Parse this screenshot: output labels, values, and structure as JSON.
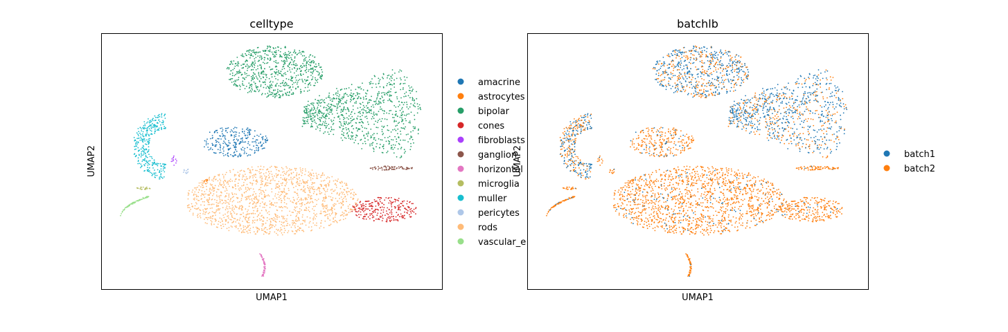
{
  "chart_data": [
    {
      "type": "scatter",
      "title": "celltype",
      "xlabel": "UMAP1",
      "ylabel": "UMAP2",
      "grid": false,
      "ticks_visible": false,
      "legend_placement": "right, outside",
      "series": [
        {
          "name": "amacrine",
          "color": "#1f77b4"
        },
        {
          "name": "astrocytes",
          "color": "#ff7f0e"
        },
        {
          "name": "bipolar",
          "color": "#279e68"
        },
        {
          "name": "cones",
          "color": "#d62728"
        },
        {
          "name": "fibroblasts",
          "color": "#aa40fc"
        },
        {
          "name": "ganglion",
          "color": "#8c564b"
        },
        {
          "name": "horizontal",
          "color": "#e377c2"
        },
        {
          "name": "microglia",
          "color": "#b5bd61"
        },
        {
          "name": "muller",
          "color": "#17becf"
        },
        {
          "name": "pericytes",
          "color": "#aec7e8"
        },
        {
          "name": "rods",
          "color": "#ffbb78"
        },
        {
          "name": "vascular_e",
          "color": "#98df8a"
        }
      ]
    },
    {
      "type": "scatter",
      "title": "batchlb",
      "xlabel": "UMAP1",
      "ylabel": "UMAP2",
      "grid": false,
      "ticks_visible": false,
      "legend_placement": "right, outside",
      "series": [
        {
          "name": "batch1",
          "color": "#1f77b4"
        },
        {
          "name": "batch2",
          "color": "#ff7f0e"
        }
      ]
    }
  ]
}
